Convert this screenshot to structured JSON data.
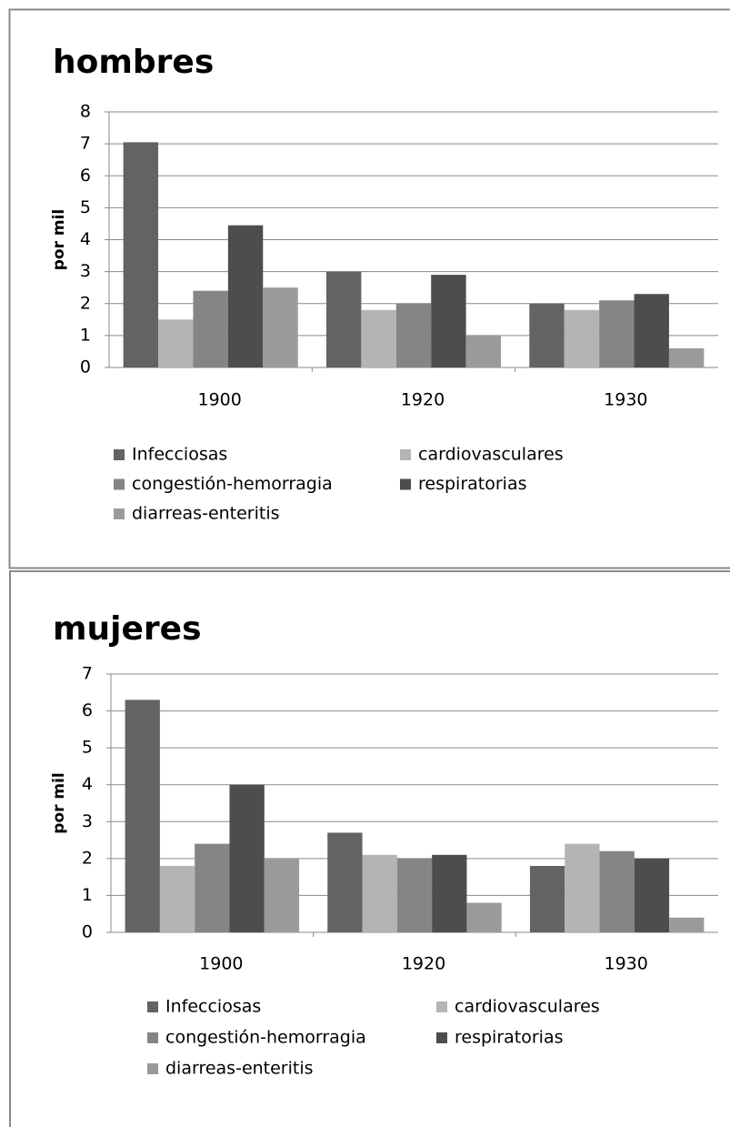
{
  "chart_data": [
    {
      "type": "bar",
      "title": "hombres",
      "y_label": "por mil",
      "categories": [
        "1900",
        "1920",
        "1930"
      ],
      "series": [
        {
          "name": "Infecciosas",
          "color": "#636363",
          "values": [
            7.05,
            3,
            2
          ]
        },
        {
          "name": "cardiovasculares",
          "color": "#b4b4b4",
          "values": [
            1.5,
            1.8,
            1.8
          ]
        },
        {
          "name": "congestión-hemorragia",
          "color": "#858585",
          "values": [
            2.4,
            2,
            2.1
          ]
        },
        {
          "name": "respiratorias",
          "color": "#4d4d4d",
          "values": [
            4.45,
            2.9,
            2.3
          ]
        },
        {
          "name": "diarreas-enteritis",
          "color": "#9a9a9a",
          "values": [
            2.5,
            1,
            0.6
          ]
        }
      ],
      "ylim": [
        0,
        8
      ],
      "yticks": [
        0,
        1,
        2,
        3,
        4,
        5,
        6,
        7,
        8
      ],
      "grid": true,
      "legend": "bottom"
    },
    {
      "type": "bar",
      "title": "mujeres",
      "y_label": "por mil",
      "categories": [
        "1900",
        "1920",
        "1930"
      ],
      "series": [
        {
          "name": "Infecciosas",
          "color": "#636363",
          "values": [
            6.3,
            2.7,
            1.8
          ]
        },
        {
          "name": "cardiovasculares",
          "color": "#b4b4b4",
          "values": [
            1.8,
            2.1,
            2.4
          ]
        },
        {
          "name": "congestión-hemorragia",
          "color": "#858585",
          "values": [
            2.4,
            2,
            2.2
          ]
        },
        {
          "name": "respiratorias",
          "color": "#4d4d4d",
          "values": [
            4,
            2.1,
            2
          ]
        },
        {
          "name": "diarreas-enteritis",
          "color": "#9a9a9a",
          "values": [
            2,
            0.8,
            0.4
          ]
        }
      ],
      "ylim": [
        0,
        7
      ],
      "yticks": [
        0,
        1,
        2,
        3,
        4,
        5,
        6,
        7
      ],
      "grid": true,
      "legend": "bottom"
    }
  ]
}
